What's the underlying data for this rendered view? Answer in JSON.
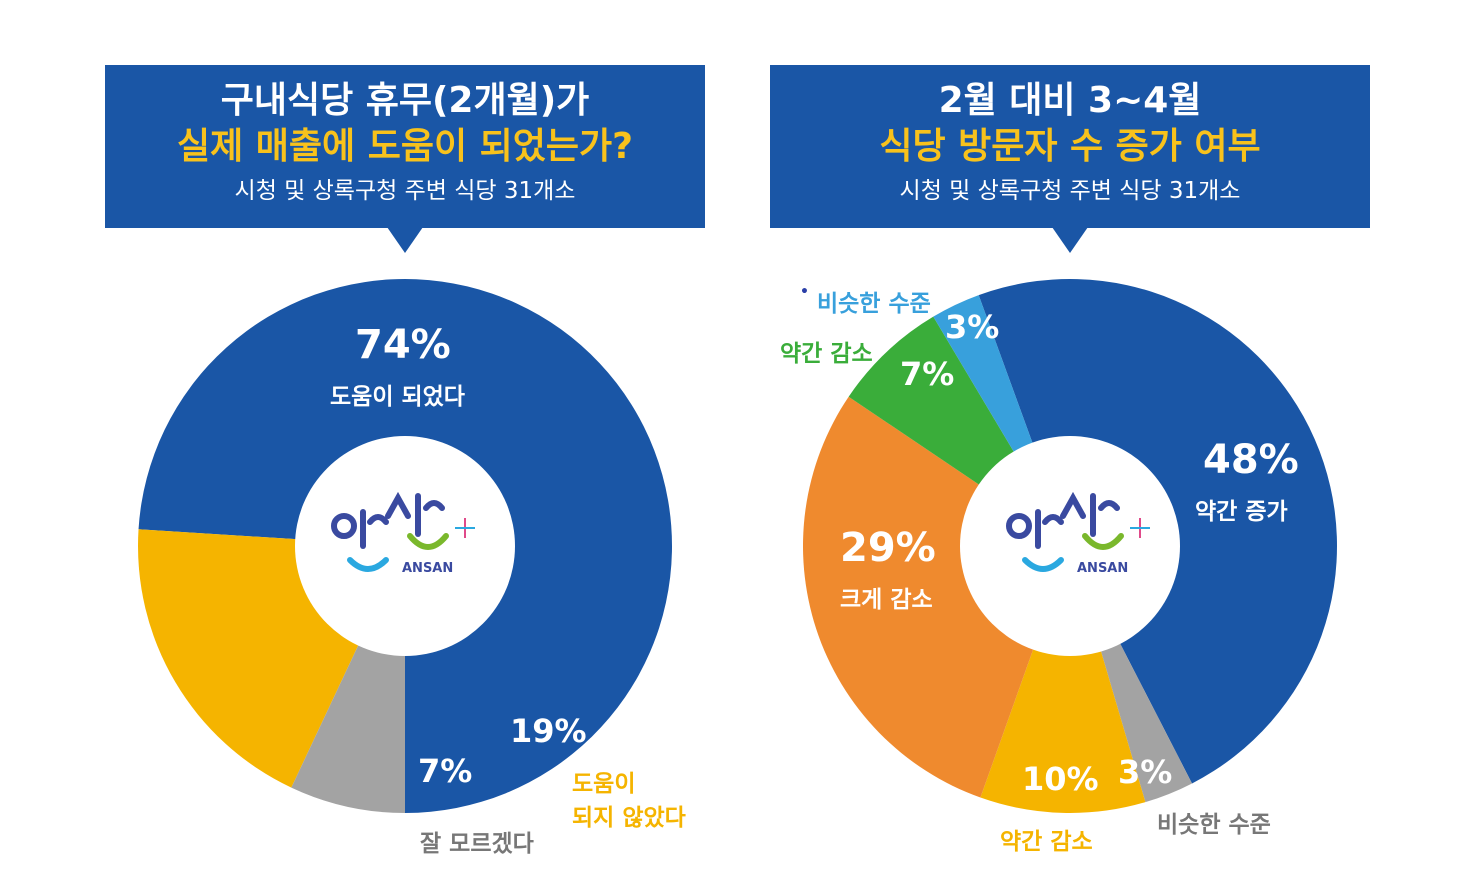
{
  "colors": {
    "blue": "#1a56a6",
    "yellow": "#f5b400",
    "gray": "#a3a3a3",
    "orange": "#ef8a2e",
    "green": "#3aad3a",
    "lightblue": "#38a0dc",
    "title_yellow": "#f8c21c"
  },
  "logo": {
    "text": "ANSAN"
  },
  "chart_data": [
    {
      "type": "pie",
      "donut": true,
      "title": "구내식당 휴무(2개월)가",
      "title2": "실제 매출에 도움이 되었는가?",
      "subtitle": "시청 및 상록구청 주변 식당 31개소",
      "slices": [
        {
          "label": "도움이 되었다",
          "value": 74,
          "display": "74%",
          "color": "#1a56a6"
        },
        {
          "label": "도움이 되지 않았다",
          "label_line1": "도움이",
          "label_line2": "되지 않았다",
          "value": 19,
          "display": "19%",
          "color": "#f5b400"
        },
        {
          "label": "잘 모르겠다",
          "value": 7,
          "display": "7%",
          "color": "#a3a3a3"
        }
      ]
    },
    {
      "type": "pie",
      "donut": true,
      "title": "2월 대비 3~4월",
      "title2": "식당 방문자 수 증가 여부",
      "subtitle": "시청 및 상록구청 주변 식당 31개소",
      "slices": [
        {
          "label": "약간 증가",
          "value": 48,
          "display": "48%",
          "color": "#1a56a6"
        },
        {
          "label": "비슷한 수준",
          "value": 3,
          "display": "3%",
          "color": "#a3a3a3"
        },
        {
          "label": "약간 감소",
          "value": 10,
          "display": "10%",
          "color": "#f5b400"
        },
        {
          "label": "크게 감소",
          "value": 29,
          "display": "29%",
          "color": "#ef8a2e"
        },
        {
          "label": "약간 감소",
          "value": 7,
          "display": "7%",
          "color": "#3aad3a"
        },
        {
          "label": "비슷한 수준",
          "value": 3,
          "display": "3%",
          "color": "#38a0dc"
        }
      ]
    }
  ]
}
